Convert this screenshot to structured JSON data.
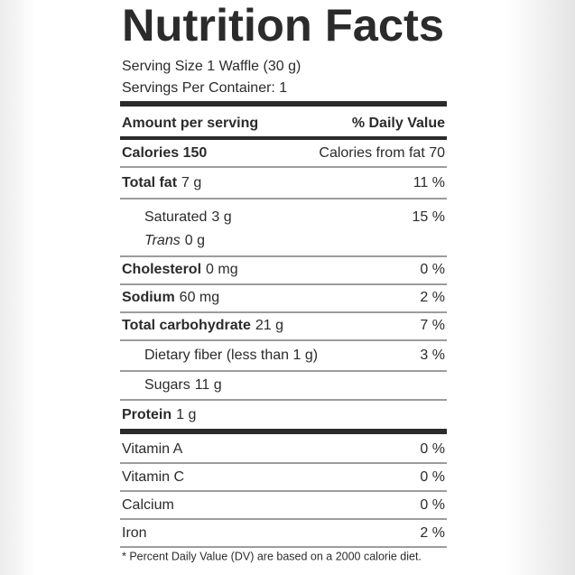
{
  "title": "Nutrition Facts",
  "serving_size": "Serving Size 1 Waffle (30 g)",
  "servings_per_container": "Servings Per Container: 1",
  "header": {
    "amount": "Amount per serving",
    "daily_value": "% Daily Value"
  },
  "calories": {
    "label": "Calories 150",
    "from_fat": "Calories from fat 70"
  },
  "nutrients": [
    {
      "name": "Total fat",
      "amount": "7 g",
      "dv": "11 %"
    },
    {
      "name": "Saturated",
      "amount": "3 g",
      "dv": "15 %"
    },
    {
      "name": "Trans",
      "amount": "0 g"
    },
    {
      "name": "Cholesterol",
      "amount": "0 mg",
      "dv": "0 %"
    },
    {
      "name": "Sodium",
      "amount": "60 mg",
      "dv": "2 %"
    },
    {
      "name": "Total carbohydrate",
      "amount": "21 g",
      "dv": "7 %"
    },
    {
      "name": "Dietary fiber (less than 1 g)",
      "dv": "3 %"
    },
    {
      "name": "Sugars",
      "amount": "11 g"
    },
    {
      "name": "Protein",
      "amount": "1 g"
    }
  ],
  "vitamins": [
    {
      "name": "Vitamin A",
      "dv": "0 %"
    },
    {
      "name": "Vitamin C",
      "dv": "0 %"
    },
    {
      "name": "Calcium",
      "dv": "0 %"
    },
    {
      "name": "Iron",
      "dv": "2 %"
    }
  ],
  "footnote": "* Percent Daily Value (DV) are based on a 2000 calorie diet."
}
